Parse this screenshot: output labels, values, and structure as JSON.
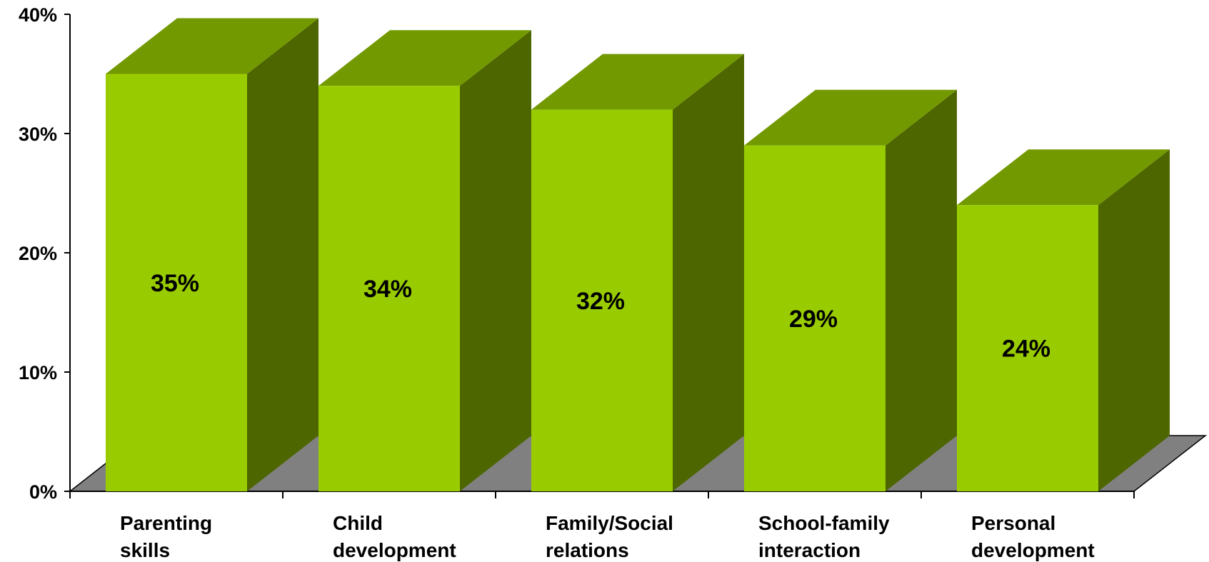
{
  "chart_data": {
    "type": "bar",
    "title": "",
    "xlabel": "",
    "ylabel": "",
    "categories": [
      [
        "Parenting",
        "skills"
      ],
      [
        "Child",
        "development"
      ],
      [
        "Family/Social",
        "relations"
      ],
      [
        "School-family",
        "interaction"
      ],
      [
        "Personal",
        "development"
      ]
    ],
    "values": [
      35,
      34,
      32,
      29,
      24
    ],
    "value_labels": [
      "35%",
      "34%",
      "32%",
      "29%",
      "24%"
    ],
    "ylim": [
      0,
      40
    ],
    "yticks": [
      0,
      10,
      20,
      30,
      40
    ],
    "ytick_labels": [
      "0%",
      "10%",
      "20%",
      "30%",
      "40%"
    ],
    "grid": false,
    "style": "3d-column",
    "colors": {
      "bar_front": "#99CC00",
      "bar_top": "#739900",
      "bar_side": "#4D6600",
      "floor": "#808080",
      "axis": "#000000"
    }
  }
}
